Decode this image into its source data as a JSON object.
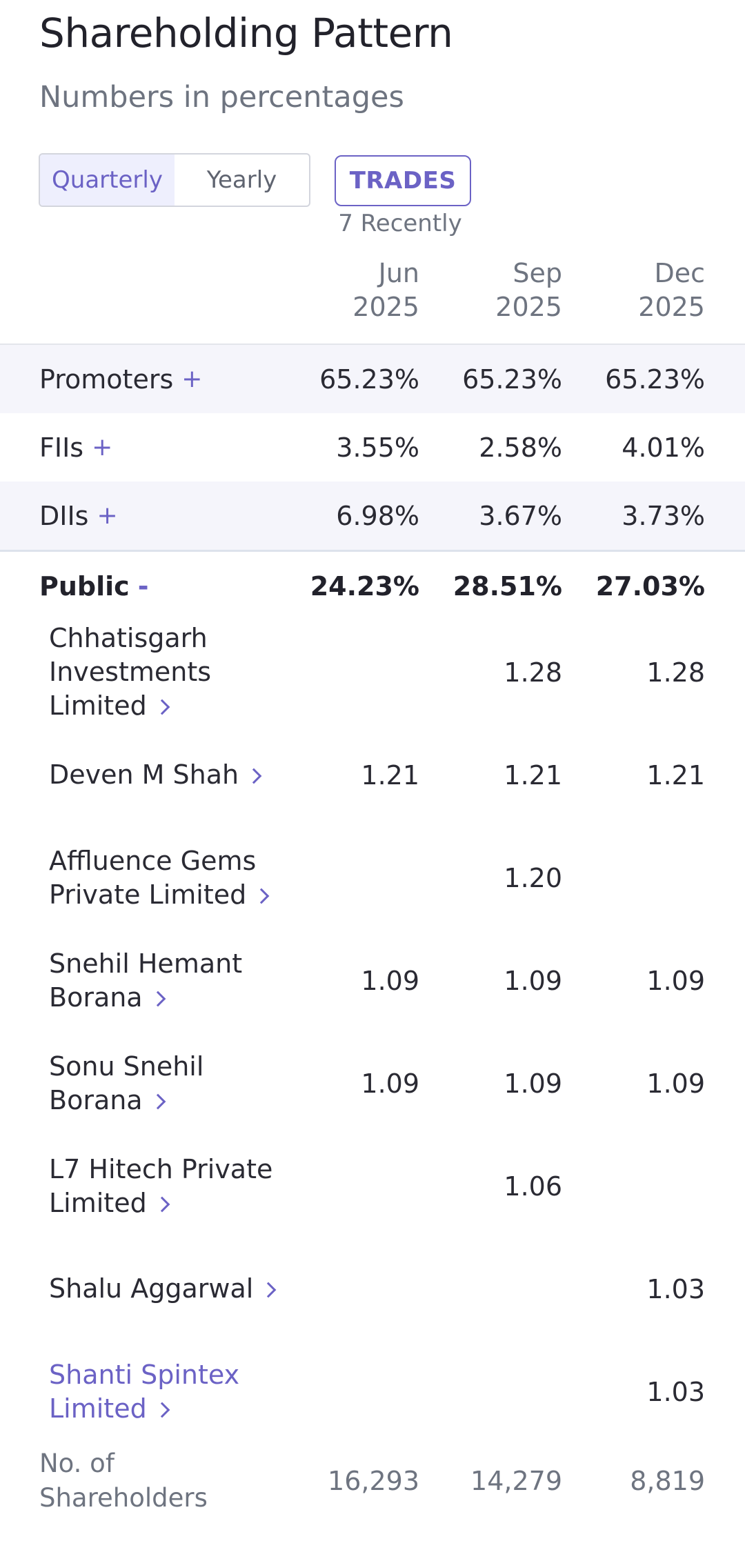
{
  "header": {
    "title": "Shareholding Pattern",
    "subtitle": "Numbers in percentages"
  },
  "controls": {
    "quarterly_label": "Quarterly",
    "yearly_label": "Yearly",
    "trades_label": "TRADES",
    "recent_text": "7 Recently"
  },
  "columns": [
    {
      "month": "Jun",
      "year": "2025"
    },
    {
      "month": "Sep",
      "year": "2025"
    },
    {
      "month": "Dec",
      "year": "2025"
    }
  ],
  "categories": {
    "promoters": {
      "label": "Promoters",
      "symbol": "+",
      "values": [
        "65.23%",
        "65.23%",
        "65.23%"
      ]
    },
    "fiis": {
      "label": "FIIs",
      "symbol": "+",
      "values": [
        "3.55%",
        "2.58%",
        "4.01%"
      ]
    },
    "diis": {
      "label": "DIIs",
      "symbol": "+",
      "values": [
        "6.98%",
        "3.67%",
        "3.73%"
      ]
    },
    "public": {
      "label": "Public",
      "symbol": "-",
      "values": [
        "24.23%",
        "28.51%",
        "27.03%"
      ]
    }
  },
  "shareholders": [
    {
      "name": "Chhatisgarh Investments Limited",
      "values": [
        "",
        "1.28",
        "1.28"
      ]
    },
    {
      "name": "Deven M Shah",
      "values": [
        "1.21",
        "1.21",
        "1.21"
      ]
    },
    {
      "name": "Affluence Gems Private Limited",
      "values": [
        "",
        "1.20",
        ""
      ]
    },
    {
      "name": "Snehil Hemant Borana",
      "values": [
        "1.09",
        "1.09",
        "1.09"
      ]
    },
    {
      "name": "Sonu Snehil Borana",
      "values": [
        "1.09",
        "1.09",
        "1.09"
      ]
    },
    {
      "name": "L7 Hitech Private Limited",
      "values": [
        "",
        "1.06",
        ""
      ]
    },
    {
      "name": "Shalu Aggarwal",
      "values": [
        "",
        "",
        "1.03"
      ]
    },
    {
      "name": "Shanti Spintex Limited",
      "values": [
        "",
        "",
        "1.03"
      ]
    }
  ],
  "footer": {
    "label": "No. of Shareholders",
    "values": [
      "16,293",
      "14,279",
      "8,819"
    ]
  },
  "colors": {
    "accent": "#6b62c5",
    "shade": "#f5f5fb"
  }
}
